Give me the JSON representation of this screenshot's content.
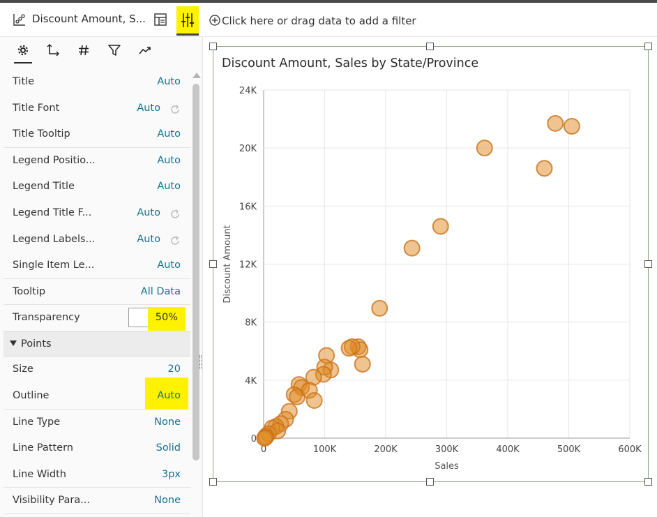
{
  "panel": {
    "title": "Discount Amount, S...",
    "vis_icon": "scatter-chart-icon",
    "layout_icon": "layout-icon",
    "properties_icon": "properties-sliders-icon",
    "tabs": [
      {
        "name": "general",
        "icon": "gear-icon"
      },
      {
        "name": "axis",
        "icon": "axis-icon"
      },
      {
        "name": "values",
        "icon": "hash-icon"
      },
      {
        "name": "filters",
        "icon": "filter-icon"
      },
      {
        "name": "analytics",
        "icon": "trend-icon"
      }
    ],
    "rows_top": [
      {
        "label": "Title",
        "value": "Auto",
        "reset": false
      },
      {
        "label": "Title Font",
        "value": "Auto",
        "reset": true
      },
      {
        "label": "Title Tooltip",
        "value": "Auto",
        "reset": false
      },
      {
        "label": "Legend Positio...",
        "value": "Auto",
        "reset": false
      },
      {
        "label": "Legend Title",
        "value": "Auto",
        "reset": false
      },
      {
        "label": "Legend Title F...",
        "value": "Auto",
        "reset": true
      },
      {
        "label": "Legend Labels...",
        "value": "Auto",
        "reset": true
      },
      {
        "label": "Single Item Le...",
        "value": "Auto",
        "reset": false
      },
      {
        "label": "Tooltip",
        "value": "All Data",
        "reset": false
      }
    ],
    "transparency": {
      "label": "Transparency",
      "value": "50%"
    },
    "points_section": "Points",
    "size": {
      "label": "Size",
      "value": "20"
    },
    "outline": {
      "label": "Outline",
      "value": "Auto"
    },
    "rows_bottom": [
      {
        "label": "Line Type",
        "value": "None"
      },
      {
        "label": "Line Pattern",
        "value": "Solid"
      },
      {
        "label": "Line Width",
        "value": "3px"
      },
      {
        "label": "Visibility Para...",
        "value": "None"
      }
    ]
  },
  "filter_bar": {
    "icon": "add-circle-icon",
    "text": "Click here or drag data to add a filter"
  },
  "chart_data": {
    "type": "scatter",
    "title": "Discount Amount, Sales by State/Province",
    "xlabel": "Sales",
    "ylabel": "Discount Amount",
    "xlim": [
      0,
      600000
    ],
    "ylim": [
      0,
      24000
    ],
    "x_ticks": [
      "0",
      "100K",
      "200K",
      "300K",
      "400K",
      "500K",
      "600K"
    ],
    "y_ticks": [
      "0",
      "4K",
      "8K",
      "12K",
      "16K",
      "20K",
      "24K"
    ],
    "grid": true,
    "point_color": "#e08a22",
    "transparency": 0.5,
    "points": [
      {
        "x": 478000,
        "y": 21700
      },
      {
        "x": 505000,
        "y": 21500
      },
      {
        "x": 362000,
        "y": 20000
      },
      {
        "x": 460000,
        "y": 18600
      },
      {
        "x": 290000,
        "y": 14600
      },
      {
        "x": 243000,
        "y": 13100
      },
      {
        "x": 190000,
        "y": 8950
      },
      {
        "x": 155000,
        "y": 6300
      },
      {
        "x": 158000,
        "y": 6100
      },
      {
        "x": 145000,
        "y": 6300
      },
      {
        "x": 140000,
        "y": 6200
      },
      {
        "x": 162000,
        "y": 5100
      },
      {
        "x": 103000,
        "y": 5700
      },
      {
        "x": 110000,
        "y": 4700
      },
      {
        "x": 100000,
        "y": 4900
      },
      {
        "x": 98000,
        "y": 4400
      },
      {
        "x": 82000,
        "y": 4200
      },
      {
        "x": 58000,
        "y": 3700
      },
      {
        "x": 62000,
        "y": 3500
      },
      {
        "x": 50000,
        "y": 3000
      },
      {
        "x": 55000,
        "y": 2850
      },
      {
        "x": 75000,
        "y": 3300
      },
      {
        "x": 83000,
        "y": 2600
      },
      {
        "x": 42000,
        "y": 1850
      },
      {
        "x": 36000,
        "y": 1300
      },
      {
        "x": 28000,
        "y": 1000
      },
      {
        "x": 20000,
        "y": 800
      },
      {
        "x": 14000,
        "y": 700
      },
      {
        "x": 23000,
        "y": 500
      },
      {
        "x": 8000,
        "y": 300
      },
      {
        "x": 4000,
        "y": 150
      },
      {
        "x": 3000,
        "y": 50
      },
      {
        "x": 1500,
        "y": 0
      }
    ]
  }
}
